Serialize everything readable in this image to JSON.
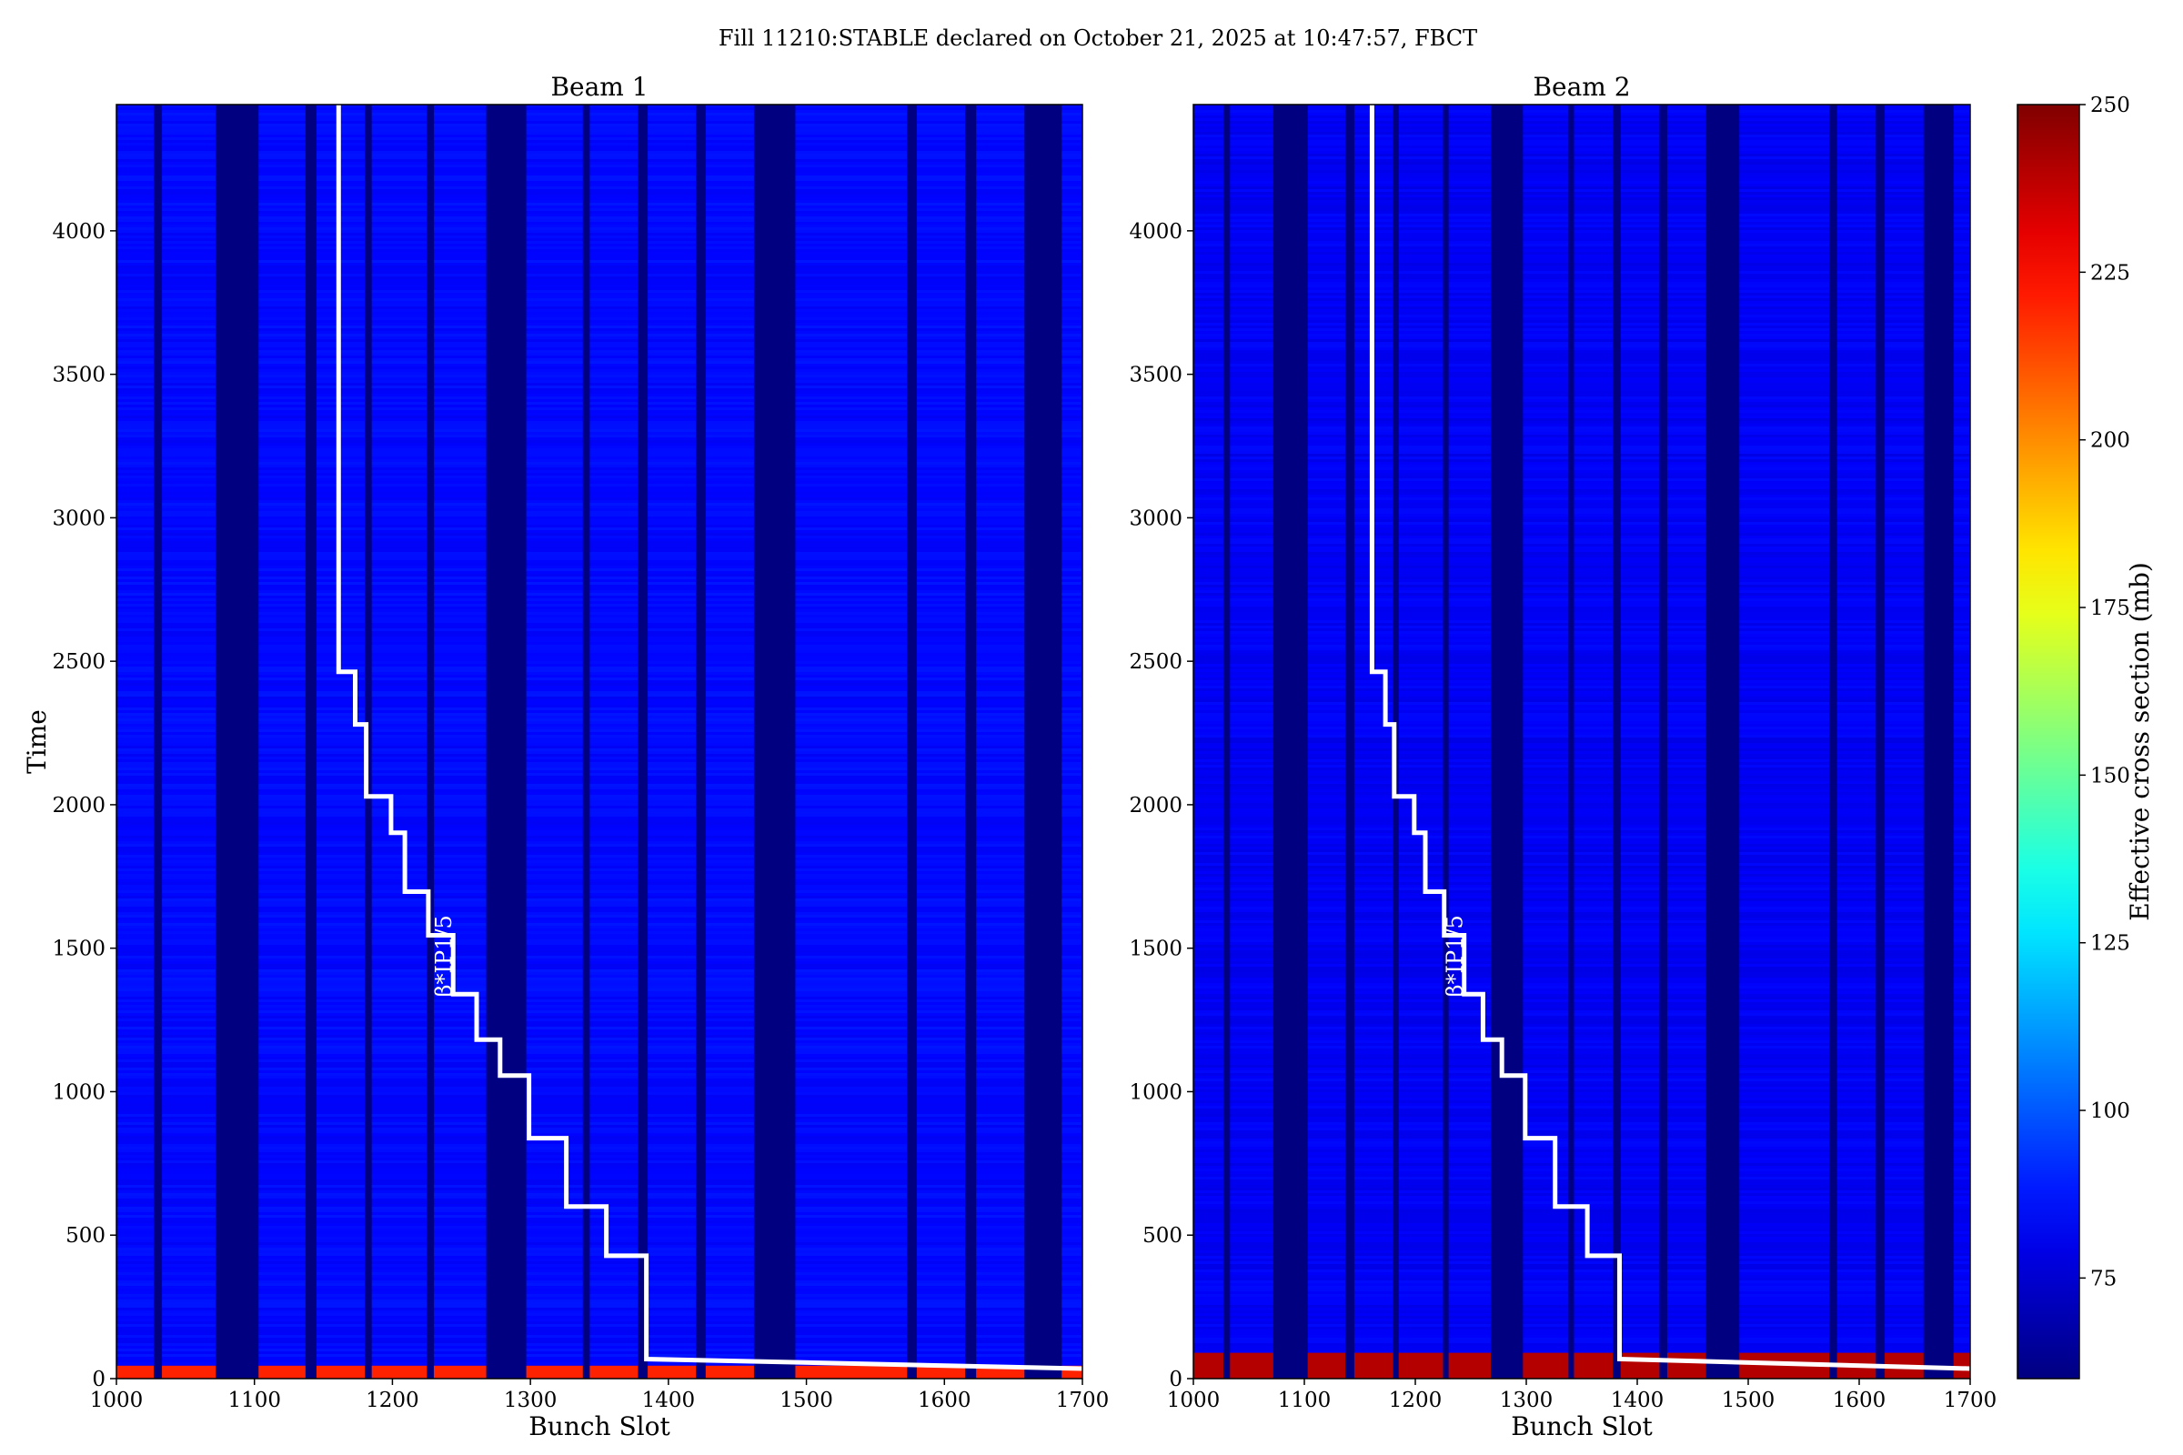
{
  "figure": {
    "title": "Fill 11210:STABLE declared on October 21, 2025 at 10:47:57, FBCT"
  },
  "colorbar": {
    "label": "Effective cross section (mb)",
    "range": [
      60,
      250
    ],
    "ticks": [
      "75",
      "100",
      "125",
      "150",
      "175",
      "200",
      "225",
      "250"
    ],
    "tick_values": [
      75,
      100,
      125,
      150,
      175,
      200,
      225,
      250
    ],
    "colormap": "jet"
  },
  "chart_data": [
    {
      "type": "heatmap",
      "title": "Beam 1",
      "xlabel": "Bunch Slot",
      "ylabel": "Time",
      "xlim": [
        1000,
        1700
      ],
      "ylim": [
        0,
        4440
      ],
      "x_ticks": [
        "1000",
        "1100",
        "1200",
        "1300",
        "1400",
        "1500",
        "1600",
        "1700"
      ],
      "y_ticks": [
        "0",
        "500",
        "1000",
        "1500",
        "2000",
        "2500",
        "3000",
        "3500",
        "4000"
      ],
      "empty_slot_gaps": [
        [
          1027,
          1033
        ],
        [
          1072,
          1103
        ],
        [
          1137,
          1145
        ],
        [
          1180,
          1185
        ],
        [
          1225,
          1230
        ],
        [
          1268,
          1297
        ],
        [
          1338,
          1343
        ],
        [
          1378,
          1385
        ],
        [
          1420,
          1427
        ],
        [
          1462,
          1492
        ],
        [
          1573,
          1580
        ],
        [
          1615,
          1623
        ],
        [
          1658,
          1685
        ]
      ],
      "typical_value_mb": 85,
      "early_value_mb": 220,
      "early_time_end": 45,
      "annotation": "β*IP1/5",
      "overlay_line": {
        "color": "#ffffff",
        "points": [
          [
            1700,
            35
          ],
          [
            1384,
            68
          ],
          [
            1384,
            428
          ],
          [
            1355,
            428
          ],
          [
            1355,
            600
          ],
          [
            1326,
            600
          ],
          [
            1326,
            838
          ],
          [
            1299,
            838
          ],
          [
            1299,
            1056
          ],
          [
            1278,
            1056
          ],
          [
            1278,
            1181
          ],
          [
            1261,
            1181
          ],
          [
            1261,
            1340
          ],
          [
            1244,
            1340
          ],
          [
            1244,
            1545
          ],
          [
            1226,
            1545
          ],
          [
            1226,
            1697
          ],
          [
            1209,
            1697
          ],
          [
            1209,
            1902
          ],
          [
            1199,
            1902
          ],
          [
            1199,
            2029
          ],
          [
            1181,
            2029
          ],
          [
            1181,
            2280
          ],
          [
            1173,
            2280
          ],
          [
            1173,
            2463
          ],
          [
            1161,
            2463
          ],
          [
            1161,
            4440
          ]
        ]
      }
    },
    {
      "type": "heatmap",
      "title": "Beam 2",
      "xlabel": "Bunch Slot",
      "ylabel": "",
      "xlim": [
        1000,
        1700
      ],
      "ylim": [
        0,
        4440
      ],
      "x_ticks": [
        "1000",
        "1100",
        "1200",
        "1300",
        "1400",
        "1500",
        "1600",
        "1700"
      ],
      "y_ticks": [
        "0",
        "500",
        "1000",
        "1500",
        "2000",
        "2500",
        "3000",
        "3500",
        "4000"
      ],
      "empty_slot_gaps": [
        [
          1027,
          1033
        ],
        [
          1072,
          1103
        ],
        [
          1137,
          1145
        ],
        [
          1180,
          1185
        ],
        [
          1225,
          1230
        ],
        [
          1268,
          1297
        ],
        [
          1338,
          1343
        ],
        [
          1378,
          1385
        ],
        [
          1420,
          1427
        ],
        [
          1462,
          1492
        ],
        [
          1573,
          1580
        ],
        [
          1615,
          1623
        ],
        [
          1658,
          1685
        ]
      ],
      "typical_value_mb": 82,
      "early_value_mb": 240,
      "early_time_end": 90,
      "annotation": "β*IP1/5",
      "overlay_line": {
        "color": "#ffffff",
        "points": [
          [
            1700,
            35
          ],
          [
            1384,
            68
          ],
          [
            1384,
            428
          ],
          [
            1355,
            428
          ],
          [
            1355,
            600
          ],
          [
            1326,
            600
          ],
          [
            1326,
            838
          ],
          [
            1299,
            838
          ],
          [
            1299,
            1056
          ],
          [
            1278,
            1056
          ],
          [
            1278,
            1181
          ],
          [
            1261,
            1181
          ],
          [
            1261,
            1340
          ],
          [
            1244,
            1340
          ],
          [
            1244,
            1545
          ],
          [
            1226,
            1545
          ],
          [
            1226,
            1697
          ],
          [
            1209,
            1697
          ],
          [
            1209,
            1902
          ],
          [
            1199,
            1902
          ],
          [
            1199,
            2029
          ],
          [
            1181,
            2029
          ],
          [
            1181,
            2280
          ],
          [
            1173,
            2280
          ],
          [
            1173,
            2463
          ],
          [
            1161,
            2463
          ],
          [
            1161,
            4440
          ]
        ]
      }
    }
  ]
}
